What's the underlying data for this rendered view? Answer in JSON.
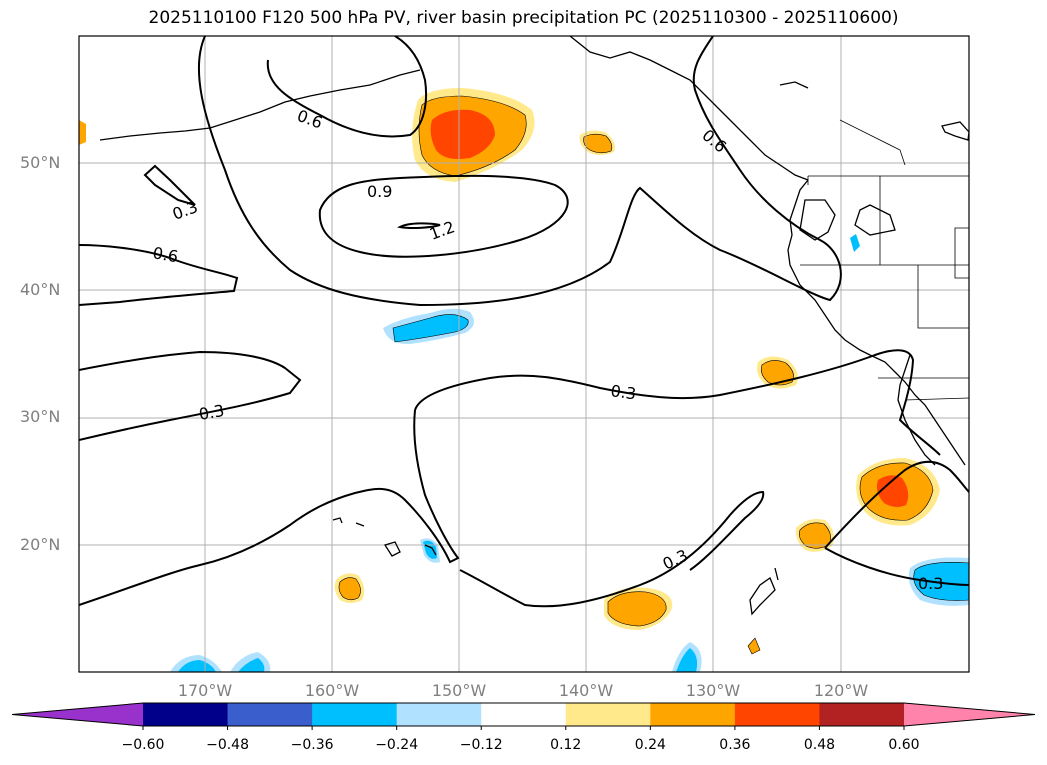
{
  "title": "2025110100 F120 500 hPa PV, river basin precipitation PC (2025110300 - 2025110600)",
  "map": {
    "latitude_labels": [
      "50°N",
      "40°N",
      "30°N",
      "20°N"
    ],
    "longitude_labels": [
      "170°W",
      "160°W",
      "150°W",
      "140°W",
      "130°W",
      "120°W"
    ],
    "pv_contour_labels": [
      "0.6",
      "0.9",
      "1.2",
      "0.3",
      "0.6",
      "0.3",
      "0.3",
      "0.3",
      "0.6",
      "0.3"
    ]
  },
  "colorbar": {
    "ticks": [
      "−0.60",
      "−0.48",
      "−0.36",
      "−0.24",
      "−0.12",
      "0.12",
      "0.24",
      "0.36",
      "0.48",
      "0.60"
    ],
    "colors": [
      "#9932cc",
      "#00008b",
      "#3a5fcd",
      "#00bfff",
      "#b0e2ff",
      "#ffffff",
      "#ffe98a",
      "#ffa500",
      "#ff4500",
      "#b22222",
      "#ff83aa"
    ],
    "extend": "both"
  }
}
